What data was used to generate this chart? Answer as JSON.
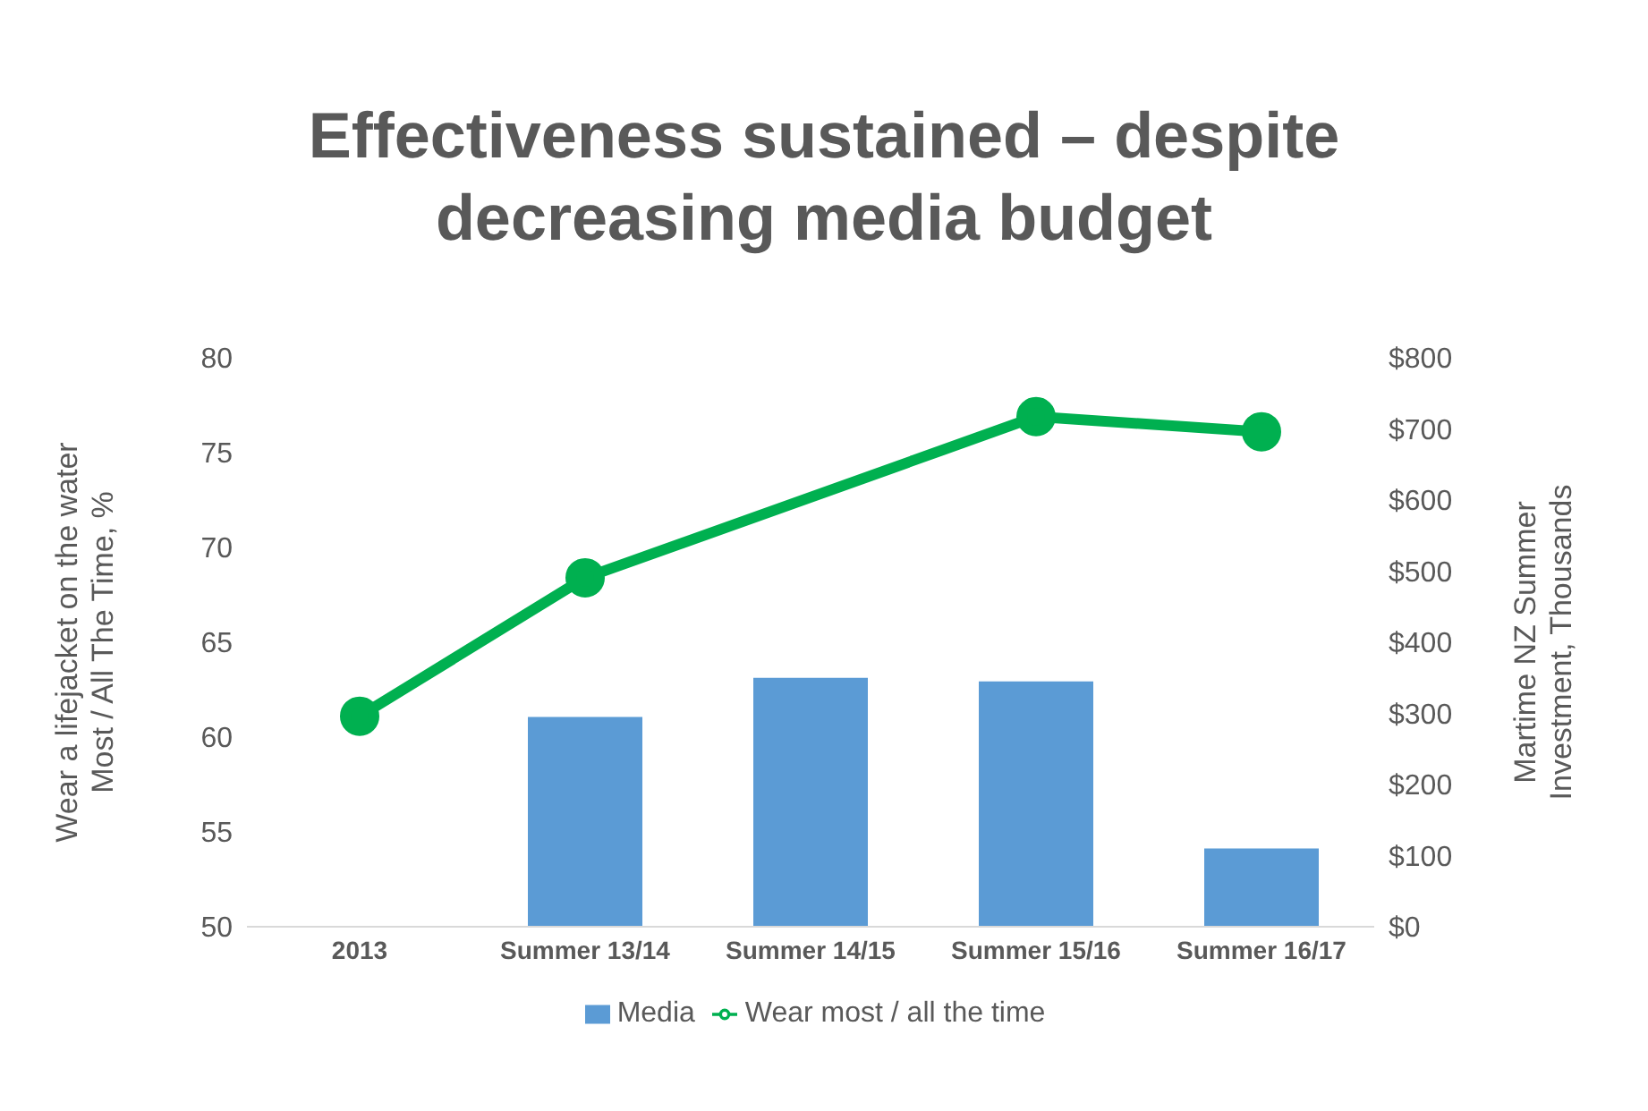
{
  "chart_data": {
    "type": "bar",
    "title": "Effectiveness sustained – despite\ndecreasing media budget",
    "ylabel": "Wear a lifejacket on the water\nMost / All The Time, %",
    "y2label": "Martime NZ Summer\nInvestment, Thousands",
    "categories": [
      "2013",
      "Summer 13/14",
      "Summer 14/15",
      "Summer 15/16",
      "Summer 16/17"
    ],
    "series": [
      {
        "name": "Media",
        "axis": "y2",
        "color": "#5b9bd5",
        "values": [
          null,
          295,
          350,
          345,
          110
        ]
      },
      {
        "name": "Wear most / all the time",
        "type": "line",
        "color": "#00b050",
        "marker": "circle",
        "values": [
          61.1,
          68.4,
          null,
          76.9,
          76.1
        ]
      }
    ],
    "ylim": [
      50,
      80
    ],
    "yticks": [
      50,
      55,
      60,
      65,
      70,
      75,
      80
    ],
    "y2lim": [
      0,
      800
    ],
    "y2ticks": [
      {
        "value": 0,
        "label": "$0"
      },
      {
        "value": 100,
        "label": "$100"
      },
      {
        "value": 200,
        "label": "$200"
      },
      {
        "value": 300,
        "label": "$300"
      },
      {
        "value": 400,
        "label": "$400"
      },
      {
        "value": 500,
        "label": "$500"
      },
      {
        "value": 600,
        "label": "$600"
      },
      {
        "value": 700,
        "label": "$700"
      },
      {
        "value": 800,
        "label": "$800"
      }
    ],
    "grid": false,
    "legend": "bottom"
  }
}
